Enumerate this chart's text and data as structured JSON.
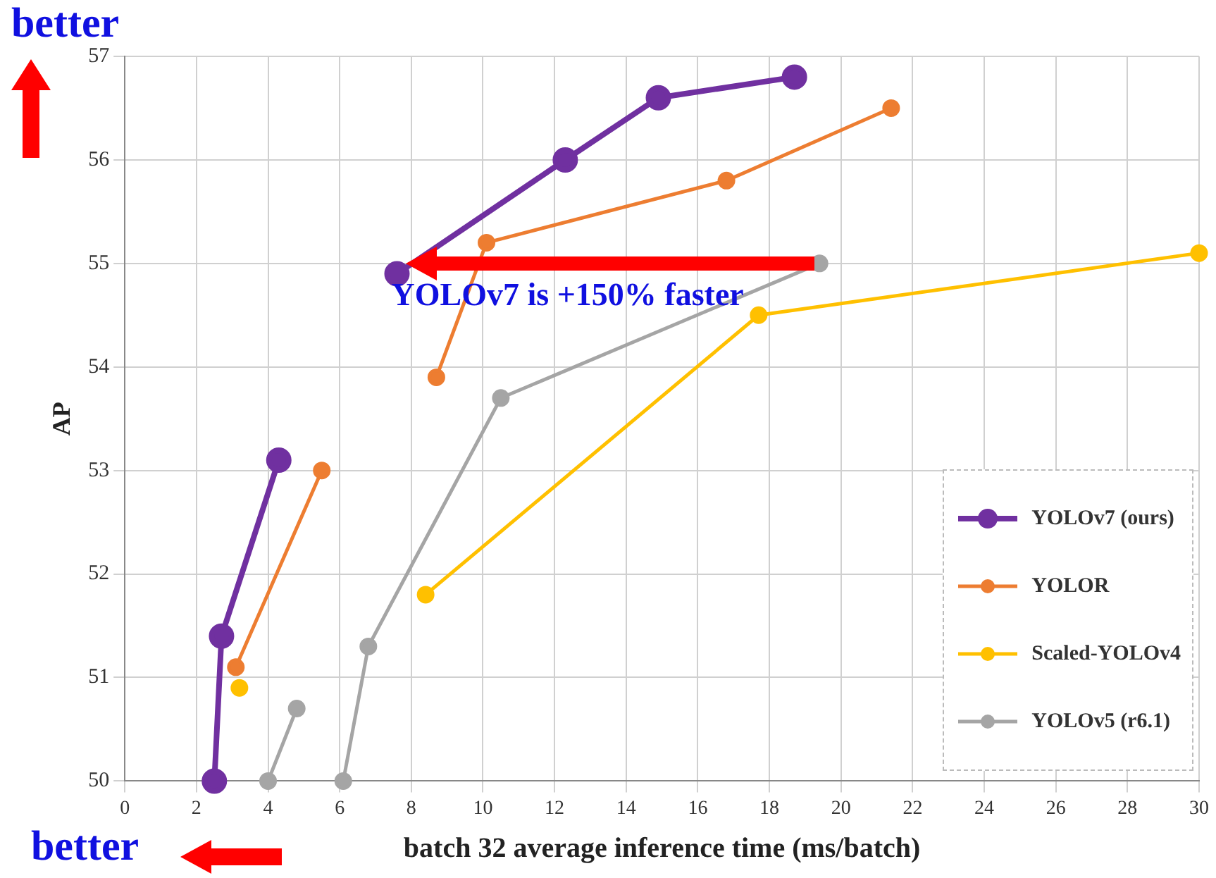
{
  "chart_data": {
    "type": "line",
    "xlabel": "batch 32 average inference time (ms/batch)",
    "ylabel": "AP",
    "xlim": [
      0,
      30
    ],
    "xticks": [
      0,
      2,
      4,
      6,
      8,
      10,
      12,
      14,
      16,
      18,
      20,
      22,
      24,
      26,
      28,
      30
    ],
    "ylim": [
      50,
      57
    ],
    "yticks": [
      50,
      51,
      52,
      53,
      54,
      55,
      56,
      57
    ],
    "grid": true,
    "legend": "bottom right",
    "marker": "circle",
    "annotations": [
      "better",
      "better",
      {
        "text": "YOLOv7 is +150% faster",
        "x": 7.6,
        "y": 55
      }
    ],
    "series": [
      {
        "name": "YOLOv7 (ours)",
        "color": "#7030a0",
        "x": [
          2.5,
          2.7,
          4.3,
          6,
          7.6,
          12.3,
          14.9,
          18.7
        ],
        "values": [
          50,
          51.4,
          53.1,
          null,
          54.9,
          56,
          56.6,
          56.8
        ]
      },
      {
        "name": "YOLOR",
        "color": "#ed7d31",
        "x": [
          3.1,
          5.5,
          7,
          8.7,
          10.1,
          16.8,
          21.4
        ],
        "values": [
          51.1,
          53,
          null,
          53.9,
          55.2,
          55.8,
          56.5
        ]
      },
      {
        "name": "Scaled-YOLOv4",
        "color": "#ffc000",
        "x": [
          3.2,
          6,
          8.4,
          17.7,
          30
        ],
        "values": [
          50.9,
          null,
          51.8,
          54.5,
          55.1
        ]
      },
      {
        "name": "YOLOv5 (r6.1)",
        "color": "#a5a5a5",
        "x": [
          4,
          4.8,
          5.5,
          6.1,
          6.8,
          10.5,
          19.4
        ],
        "values": [
          50,
          50.7,
          null,
          50,
          51.3,
          53.7,
          55
        ]
      }
    ]
  }
}
